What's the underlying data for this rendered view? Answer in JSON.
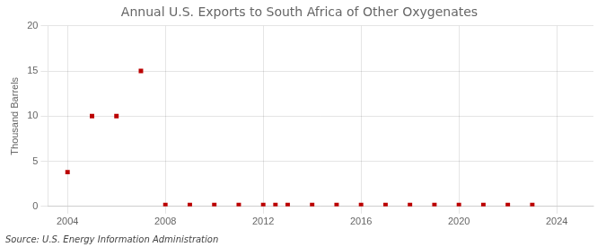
{
  "chart_data": {
    "type": "scatter",
    "title": "Annual U.S. Exports to South Africa of Other Oxygenates",
    "ylabel": "Thousand Barrels",
    "source": "Source: U.S. Energy Information Administration",
    "x": [
      2004,
      2005,
      2006,
      2007,
      2008,
      2009,
      2010,
      2011,
      2012,
      2012.5,
      2013,
      2014,
      2015,
      2016,
      2017,
      2018,
      2019,
      2020,
      2021,
      2022,
      2023
    ],
    "values": [
      3.8,
      10,
      10,
      15,
      0.15,
      0.15,
      0.15,
      0.15,
      0.15,
      0.15,
      0.15,
      0.15,
      0.15,
      0.15,
      0.15,
      0.15,
      0.15,
      0.15,
      0.15,
      0.15,
      0.15
    ],
    "color": "#bb0000",
    "marker": "square",
    "xlim": [
      2003.2,
      2025.5
    ],
    "xticks": [
      2004,
      2008,
      2012,
      2016,
      2020,
      2024
    ],
    "ylim": [
      0,
      20
    ],
    "yticks": [
      0,
      5,
      10,
      15,
      20
    ],
    "grid": true
  }
}
